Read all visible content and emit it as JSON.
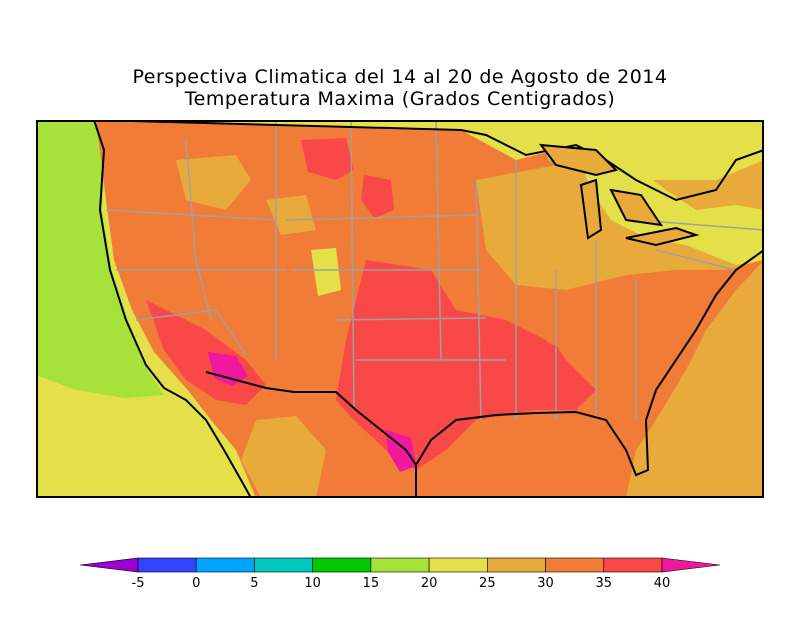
{
  "title": {
    "line1": "Perspectiva Climatica del 14 al 20 de Agosto de 2014",
    "line2": "Temperatura Maxima (Grados Centigrados)"
  },
  "map": {
    "region": "Contiguous United States and northern Mexico",
    "variable": "Maximum temperature outlook",
    "units": "°C"
  },
  "legend": {
    "ticks": [
      "-5",
      "0",
      "5",
      "10",
      "15",
      "20",
      "25",
      "30",
      "35",
      "40"
    ],
    "colors": [
      "#9b00d0",
      "#3344ff",
      "#00a4ff",
      "#00c8c0",
      "#00c800",
      "#a6e23a",
      "#e4e04a",
      "#e8aa3a",
      "#f07c38",
      "#f84848",
      "#f0189c"
    ]
  }
}
